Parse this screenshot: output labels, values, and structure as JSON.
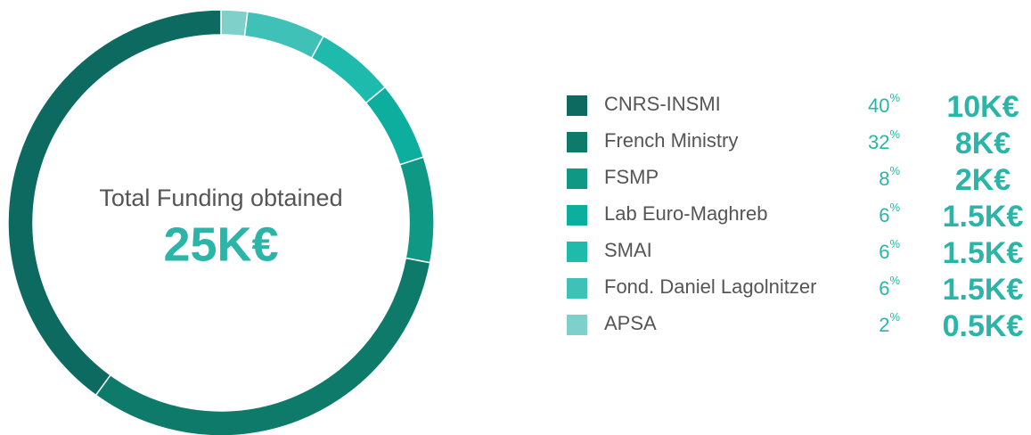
{
  "chart_data": {
    "type": "pie",
    "donut": true,
    "center_title": "Total Funding obtained",
    "center_value": "25K€",
    "categories": [
      "CNRS-INSMI",
      "French Ministry",
      "FSMP",
      "Lab Euro-Maghreb",
      "SMAI",
      "Fond. Daniel Lagolnitzer",
      "APSA"
    ],
    "values": [
      40,
      32,
      8,
      6,
      6,
      6,
      2
    ],
    "value_suffix": "%",
    "amounts": [
      "10K€",
      "8K€",
      "2K€",
      "1.5K€",
      "1.5K€",
      "1.5K€",
      "0.5K€"
    ],
    "colors": [
      "#0c6a61",
      "#0e7a6a",
      "#0f9884",
      "#0eae9e",
      "#1ebbad",
      "#3fc1b7",
      "#7fcfca"
    ]
  }
}
